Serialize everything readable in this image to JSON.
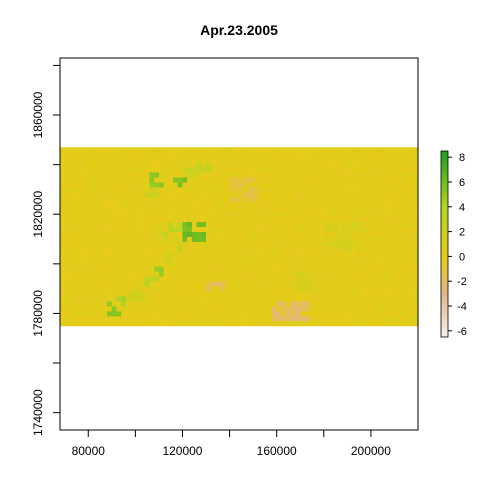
{
  "chart_data": {
    "type": "heatmap",
    "title": "Apr.23.2005",
    "xlabel": "",
    "ylabel": "",
    "xlim": [
      68000,
      220000
    ],
    "ylim": [
      1733000,
      1883000
    ],
    "x_ticks": [
      80000,
      100000,
      120000,
      140000,
      160000,
      180000,
      200000
    ],
    "x_tick_labels": [
      "80000",
      "",
      "120000",
      "",
      "160000",
      "",
      "200000"
    ],
    "y_ticks": [
      1740000,
      1760000,
      1780000,
      1800000,
      1820000,
      1840000,
      1860000,
      1880000
    ],
    "y_tick_labels": [
      "1740000",
      "",
      "1780000",
      "",
      "1820000",
      "",
      "1860000",
      ""
    ],
    "raster_extent": {
      "xmin": 68000,
      "xmax": 220000,
      "ymin": 1775000,
      "ymax": 1846000
    },
    "background_value": 0.2,
    "patches": [
      {
        "x": [
          89000,
          95000
        ],
        "y": [
          1780000,
          1786000
        ],
        "value": 5.0
      },
      {
        "x": [
          93000,
          97000
        ],
        "y": [
          1782000,
          1788000
        ],
        "value": 4.0
      },
      {
        "x": [
          97000,
          104000
        ],
        "y": [
          1786000,
          1792000
        ],
        "value": 1.5
      },
      {
        "x": [
          104000,
          110000
        ],
        "y": [
          1791000,
          1795000
        ],
        "value": 3.5
      },
      {
        "x": [
          108000,
          113000
        ],
        "y": [
          1795000,
          1800000
        ],
        "value": 4.5
      },
      {
        "x": [
          111000,
          116000
        ],
        "y": [
          1801000,
          1806000
        ],
        "value": 1.5
      },
      {
        "x": [
          116000,
          121000
        ],
        "y": [
          1806000,
          1811000
        ],
        "value": 2.5
      },
      {
        "x": [
          120000,
          130000
        ],
        "y": [
          1810000,
          1818000
        ],
        "value": 6.0
      },
      {
        "x": [
          115000,
          120000
        ],
        "y": [
          1814000,
          1818000
        ],
        "value": 3.0
      },
      {
        "x": [
          110000,
          114000
        ],
        "y": [
          1810000,
          1814000
        ],
        "value": 2.0
      },
      {
        "x": [
          104000,
          110000
        ],
        "y": [
          1827000,
          1832000
        ],
        "value": 2.0
      },
      {
        "x": [
          107000,
          113000
        ],
        "y": [
          1832000,
          1837000
        ],
        "value": 5.0
      },
      {
        "x": [
          117000,
          123000
        ],
        "y": [
          1832000,
          1836000
        ],
        "value": 5.5
      },
      {
        "x": [
          121000,
          126000
        ],
        "y": [
          1836000,
          1840000
        ],
        "value": 2.0
      },
      {
        "x": [
          126000,
          133000
        ],
        "y": [
          1838000,
          1841000
        ],
        "value": 2.5
      },
      {
        "x": [
          131000,
          139000
        ],
        "y": [
          1790000,
          1794000
        ],
        "value": -1.5
      },
      {
        "x": [
          158000,
          175000
        ],
        "y": [
          1777000,
          1786000
        ],
        "value": -2.0
      },
      {
        "x": [
          140000,
          152000
        ],
        "y": [
          1825000,
          1835000
        ],
        "value": -1.0
      },
      {
        "x": [
          180000,
          196000
        ],
        "y": [
          1806000,
          1818000
        ],
        "value": 1.2
      },
      {
        "x": [
          168000,
          178000
        ],
        "y": [
          1790000,
          1798000
        ],
        "value": 1.0
      }
    ],
    "legend": {
      "placement": "right",
      "range": [
        -6.5,
        8.5
      ],
      "ticks": [
        8,
        6,
        4,
        2,
        0,
        -2,
        -4,
        -6
      ],
      "tick_labels": [
        "8",
        "6",
        "4",
        "2",
        "0",
        "-2",
        "-4",
        "-6"
      ]
    },
    "colors": {
      "neg_low": "#f2f2f2",
      "neg_mid": "#e6b48a",
      "zero": "#e6cc18",
      "pos_mid": "#b2d624",
      "pos_high": "#1f9e1f"
    }
  }
}
